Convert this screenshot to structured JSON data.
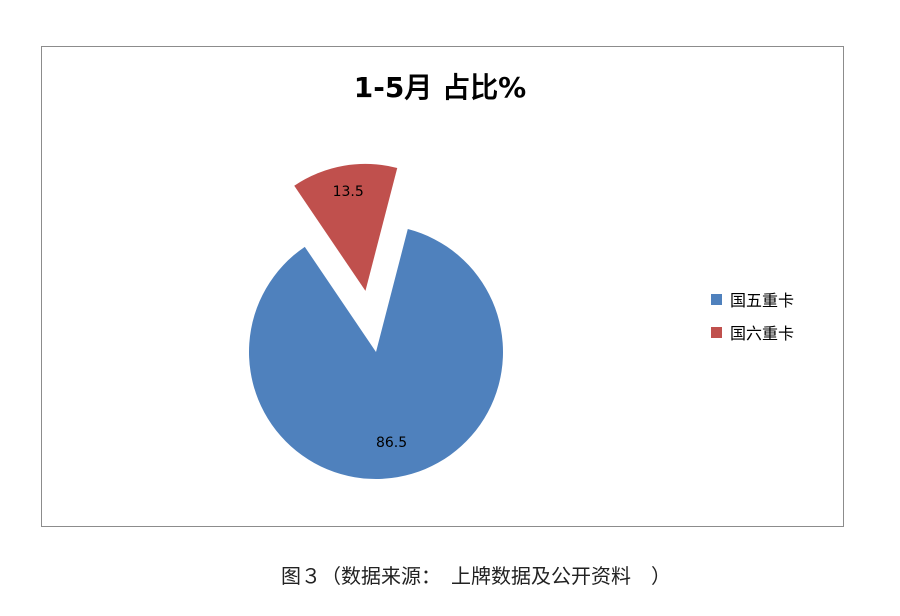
{
  "chart_data": {
    "type": "pie",
    "title": "1-5月 占比%",
    "slices": [
      {
        "name": "国五重卡",
        "value": 86.5,
        "label": "86.5",
        "color": "#4F81BD"
      },
      {
        "name": "国六重卡",
        "value": 13.5,
        "label": "13.5",
        "color": "#C0504D",
        "exploded": true
      }
    ],
    "legend_position": "right"
  },
  "caption": "图３（数据来源：　上牌数据及公开资料　）"
}
